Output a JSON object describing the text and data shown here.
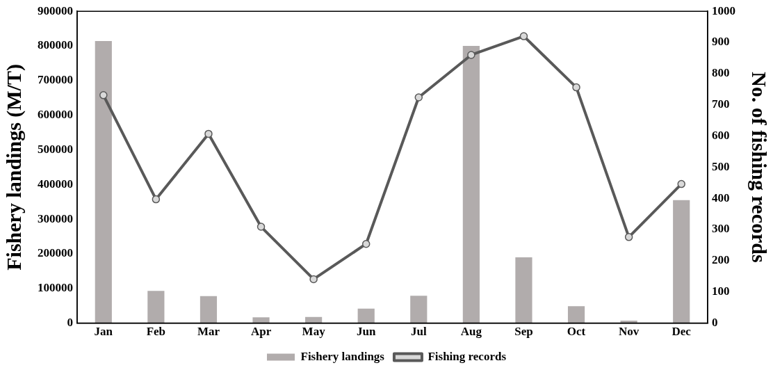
{
  "chart_data": {
    "type": "bar",
    "categories": [
      "Jan",
      "Feb",
      "Mar",
      "Apr",
      "May",
      "Jun",
      "Jul",
      "Aug",
      "Sep",
      "Oct",
      "Nov",
      "Dec"
    ],
    "ylabel": "Fishery landings (M/T)",
    "y2label": "No. of fishing records",
    "series": [
      {
        "name": "Fishery landings",
        "color": "#b1acac",
        "values": [
          814000,
          93000,
          78000,
          17000,
          18000,
          42000,
          79000,
          800000,
          190000,
          49000,
          7000,
          355000
        ]
      },
      {
        "name": "Fishing records",
        "type": "line",
        "axis": "y2",
        "color": "#595959",
        "marker": "circle",
        "values": [
          731,
          397,
          607,
          309,
          141,
          254,
          724,
          860,
          920,
          756,
          276,
          446
        ]
      }
    ],
    "ylim": [
      0,
      900000
    ],
    "yticks": [
      0,
      100000,
      200000,
      300000,
      400000,
      500000,
      600000,
      700000,
      800000,
      900000
    ],
    "y2lim": [
      0,
      1000
    ],
    "y2ticks": [
      0,
      100,
      200,
      300,
      400,
      500,
      600,
      700,
      800,
      900,
      1000
    ],
    "grid": false,
    "legend": "bottom"
  }
}
